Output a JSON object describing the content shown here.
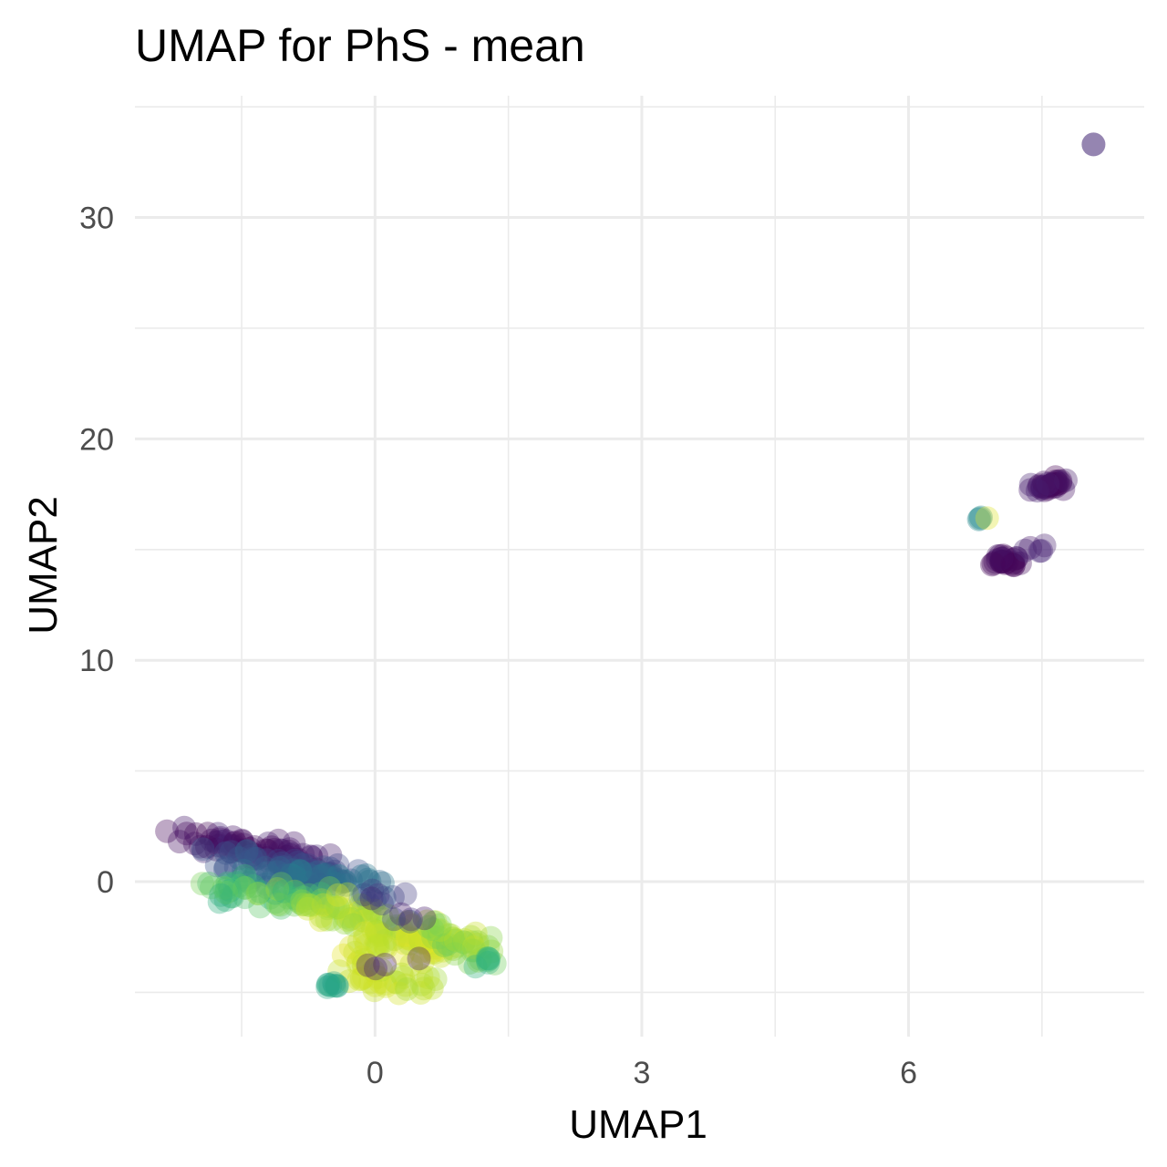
{
  "chart_data": {
    "type": "scatter",
    "title": "UMAP for PhS - mean",
    "xlabel": "UMAP1",
    "ylabel": "UMAP2",
    "xlim": [
      -2.7,
      8.65
    ],
    "ylim": [
      -7.0,
      35.5
    ],
    "x_ticks": [
      0,
      3,
      6
    ],
    "x_tick_labels": [
      "0",
      "3",
      "6"
    ],
    "x_minor_ticks": [
      -1.5,
      1.5,
      4.5,
      7.5
    ],
    "y_ticks": [
      0,
      10,
      20,
      30
    ],
    "y_tick_labels": [
      "0",
      "10",
      "20",
      "30"
    ],
    "y_minor_ticks": [
      -5,
      5,
      15,
      25,
      35
    ],
    "grid": true,
    "legend": "none",
    "point_opacity": 0.35,
    "color_scale": "viridis",
    "colors": {
      "viridis": [
        "#440154",
        "#482878",
        "#3e4a89",
        "#31688e",
        "#26828e",
        "#1f9e89",
        "#35b779",
        "#6ece58",
        "#b5de2b",
        "#fde725"
      ],
      "grid": "#ebebeb",
      "tick_text": "#4d4d4d"
    },
    "clusters": [
      {
        "x0": -2.15,
        "y0": 2.1,
        "x1": -0.65,
        "y1": 0.9,
        "sx": 0.08,
        "sy": 0.25,
        "n": 70,
        "c0": 0.0,
        "c1": 0.12
      },
      {
        "x0": -1.9,
        "y0": 1.2,
        "x1": -0.3,
        "y1": 0.2,
        "sx": 0.08,
        "sy": 0.3,
        "n": 60,
        "c0": 0.18,
        "c1": 0.32
      },
      {
        "x0": -1.5,
        "y0": 0.5,
        "x1": 0.15,
        "y1": -0.3,
        "sx": 0.08,
        "sy": 0.3,
        "n": 50,
        "c0": 0.3,
        "c1": 0.45
      },
      {
        "x0": -1.9,
        "y0": -0.4,
        "x1": -0.5,
        "y1": -1.0,
        "sx": 0.08,
        "sy": 0.3,
        "n": 55,
        "c0": 0.62,
        "c1": 0.85
      },
      {
        "x0": -0.7,
        "y0": -1.2,
        "x1": 0.6,
        "y1": -2.3,
        "sx": 0.1,
        "sy": 0.35,
        "n": 55,
        "c0": 0.82,
        "c1": 0.95
      },
      {
        "x0": -0.3,
        "y0": -3.0,
        "x1": 0.9,
        "y1": -3.0,
        "sx": 0.12,
        "sy": 0.55,
        "n": 45,
        "c0": 0.88,
        "c1": 0.98
      },
      {
        "x0": -0.2,
        "y0": -4.3,
        "x1": 0.6,
        "y1": -4.6,
        "sx": 0.12,
        "sy": 0.35,
        "n": 30,
        "c0": 0.85,
        "c1": 0.95
      },
      {
        "x0": -0.55,
        "y0": -4.8,
        "x1": -0.35,
        "y1": -4.8,
        "sx": 0.04,
        "sy": 0.12,
        "n": 8,
        "c0": 0.55,
        "c1": 0.6
      },
      {
        "x0": 0.6,
        "y0": -2.2,
        "x1": 1.3,
        "y1": -3.2,
        "sx": 0.08,
        "sy": 0.4,
        "n": 35,
        "c0": 0.75,
        "c1": 0.92
      },
      {
        "x0": 1.2,
        "y0": -3.6,
        "x1": 1.3,
        "y1": -3.6,
        "sx": 0.05,
        "sy": 0.2,
        "n": 6,
        "c0": 0.62,
        "c1": 0.7
      },
      {
        "x0": -0.15,
        "y0": -0.5,
        "x1": 0.7,
        "y1": -2.0,
        "sx": 0.06,
        "sy": 0.25,
        "n": 12,
        "c0": 0.05,
        "c1": 0.3
      },
      {
        "x0": -0.1,
        "y0": -3.9,
        "x1": 0.7,
        "y1": -3.5,
        "sx": 0.05,
        "sy": 0.15,
        "n": 4,
        "c0": 0.02,
        "c1": 0.1
      },
      {
        "x0": 7.0,
        "y0": 14.4,
        "x1": 7.2,
        "y1": 14.5,
        "sx": 0.05,
        "sy": 0.12,
        "n": 25,
        "c0": 0.0,
        "c1": 0.05
      },
      {
        "x0": 7.3,
        "y0": 14.9,
        "x1": 7.45,
        "y1": 15.0,
        "sx": 0.04,
        "sy": 0.1,
        "n": 5,
        "c0": 0.05,
        "c1": 0.12
      },
      {
        "x0": 7.48,
        "y0": 17.8,
        "x1": 7.75,
        "y1": 18.1,
        "sx": 0.04,
        "sy": 0.12,
        "n": 25,
        "c0": 0.0,
        "c1": 0.05
      },
      {
        "x0": 7.4,
        "y0": 17.85,
        "x1": 7.8,
        "y1": 18.1,
        "sx": 0.05,
        "sy": 0.12,
        "n": 6,
        "c0": 0.04,
        "c1": 0.1
      },
      {
        "x0": 6.8,
        "y0": 16.4,
        "x1": 6.8,
        "y1": 16.4,
        "sx": 0.01,
        "sy": 0.03,
        "n": 3,
        "c0": 0.45,
        "c1": 0.5
      },
      {
        "x0": 6.88,
        "y0": 16.4,
        "x1": 6.88,
        "y1": 16.4,
        "sx": 0.01,
        "sy": 0.03,
        "n": 1,
        "c0": 0.95,
        "c1": 0.95
      },
      {
        "x0": 8.08,
        "y0": 33.3,
        "x1": 8.08,
        "y1": 33.3,
        "sx": 0.0,
        "sy": 0.0,
        "n": 2,
        "c0": 0.12,
        "c1": 0.12
      }
    ]
  }
}
